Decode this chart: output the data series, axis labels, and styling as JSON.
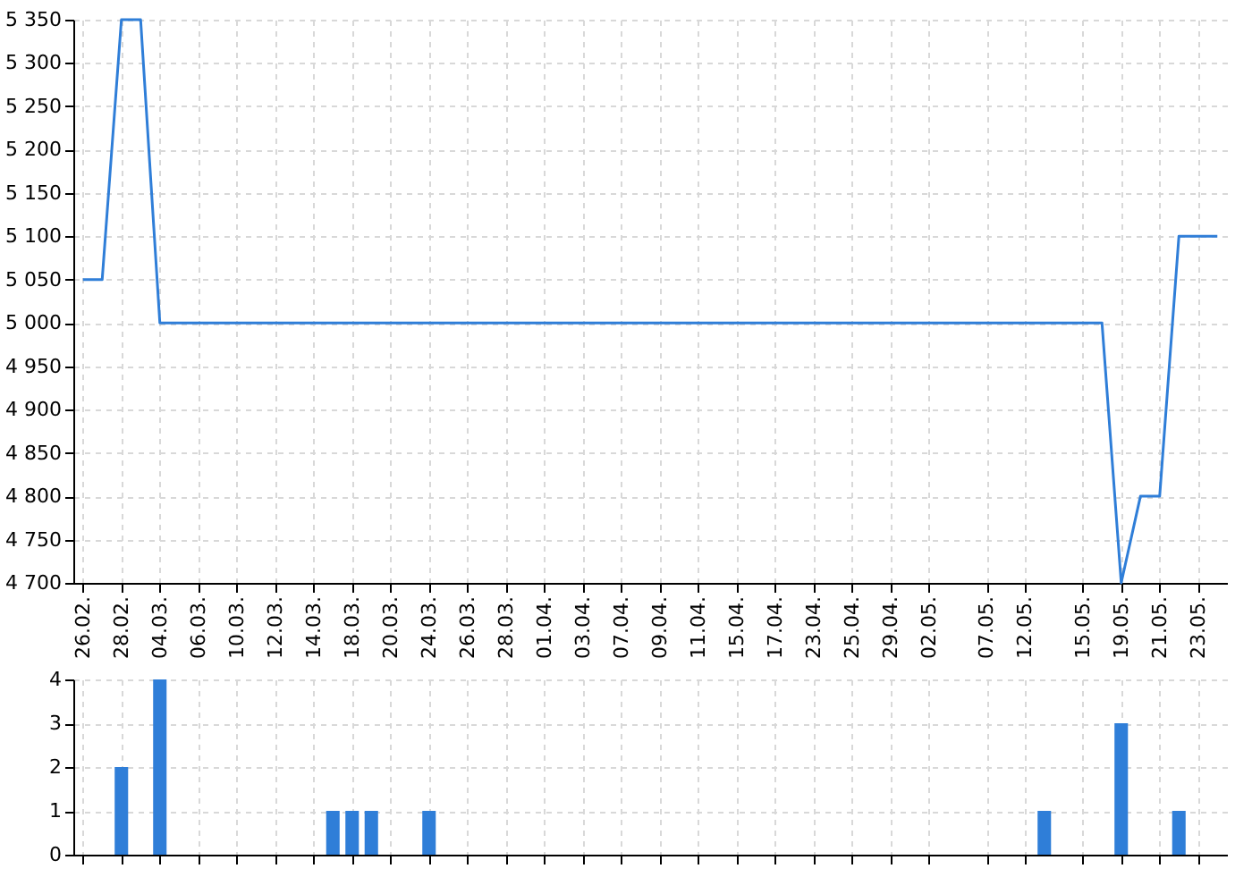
{
  "chart_data": [
    {
      "type": "line",
      "categories": [
        "26.02.",
        null,
        "28.02.",
        null,
        "04.03.",
        null,
        "06.03.",
        null,
        "10.03.",
        null,
        "12.03.",
        null,
        "14.03.",
        null,
        "18.03.",
        null,
        "20.03.",
        null,
        "24.03.",
        null,
        "26.03.",
        null,
        "28.03.",
        null,
        "01.04.",
        null,
        "03.04.",
        null,
        "07.04.",
        null,
        "09.04.",
        null,
        "11.04.",
        null,
        "15.04.",
        null,
        "17.04.",
        null,
        "23.04.",
        null,
        "25.04.",
        null,
        "29.04.",
        null,
        "02.05.",
        null,
        null,
        "07.05.",
        null,
        "12.05.",
        null,
        null,
        "15.05.",
        null,
        "19.05.",
        null,
        "21.05.",
        null,
        "23.05.",
        null
      ],
      "series": [
        {
          "color": "#2f7ed8",
          "values": [
            5050,
            5050,
            5350,
            5350,
            5000,
            5000,
            5000,
            5000,
            5000,
            5000,
            5000,
            5000,
            5000,
            5000,
            5000,
            5000,
            5000,
            5000,
            5000,
            5000,
            5000,
            5000,
            5000,
            5000,
            5000,
            5000,
            5000,
            5000,
            5000,
            5000,
            5000,
            5000,
            5000,
            5000,
            5000,
            5000,
            5000,
            5000,
            5000,
            5000,
            5000,
            5000,
            5000,
            5000,
            5000,
            5000,
            5000,
            5000,
            5000,
            5000,
            5000,
            5000,
            5000,
            5000,
            4700,
            4800,
            4800,
            5100,
            5100,
            5100
          ]
        }
      ],
      "ylim": [
        4700,
        5350
      ],
      "yticks": [
        {
          "value": 4700,
          "label": "4 700"
        },
        {
          "value": 4750,
          "label": "4 750"
        },
        {
          "value": 4800,
          "label": "4 800"
        },
        {
          "value": 4850,
          "label": "4 850"
        },
        {
          "value": 4900,
          "label": "4 900"
        },
        {
          "value": 4950,
          "label": "4 950"
        },
        {
          "value": 5000,
          "label": "5 000"
        },
        {
          "value": 5050,
          "label": "5 050"
        },
        {
          "value": 5100,
          "label": "5 100"
        },
        {
          "value": 5150,
          "label": "5 150"
        },
        {
          "value": 5200,
          "label": "5 200"
        },
        {
          "value": 5250,
          "label": "5 250"
        },
        {
          "value": 5300,
          "label": "5 300"
        },
        {
          "value": 5350,
          "label": "5 350"
        }
      ],
      "grid": true,
      "marker": "none",
      "line_style": "solid"
    },
    {
      "type": "bar",
      "categories": [
        "26.02.",
        null,
        "28.02.",
        null,
        "04.03.",
        null,
        "06.03.",
        null,
        "10.03.",
        null,
        "12.03.",
        null,
        "14.03.",
        null,
        "18.03.",
        null,
        "20.03.",
        null,
        "24.03.",
        null,
        "26.03.",
        null,
        "28.03.",
        null,
        "01.04.",
        null,
        "03.04.",
        null,
        "07.04.",
        null,
        "09.04.",
        null,
        "11.04.",
        null,
        "15.04.",
        null,
        "17.04.",
        null,
        "23.04.",
        null,
        "25.04.",
        null,
        "29.04.",
        null,
        "02.05.",
        null,
        null,
        "07.05.",
        null,
        "12.05.",
        null,
        null,
        "15.05.",
        null,
        "19.05.",
        null,
        "21.05.",
        null,
        "23.05.",
        null
      ],
      "series": [
        {
          "color": "#2f7ed8",
          "values": [
            null,
            null,
            2,
            null,
            4,
            null,
            null,
            null,
            null,
            null,
            null,
            null,
            null,
            1,
            1,
            1,
            null,
            null,
            1,
            null,
            null,
            null,
            null,
            null,
            null,
            null,
            null,
            null,
            null,
            null,
            null,
            null,
            null,
            null,
            null,
            null,
            null,
            null,
            null,
            null,
            null,
            null,
            null,
            null,
            null,
            null,
            null,
            null,
            null,
            null,
            1,
            null,
            null,
            null,
            3,
            null,
            null,
            1,
            null,
            null
          ]
        }
      ],
      "ylim": [
        0,
        4
      ],
      "yticks": [
        0,
        1,
        2,
        3,
        4
      ],
      "grid": true,
      "tick_labels": "y"
    }
  ]
}
